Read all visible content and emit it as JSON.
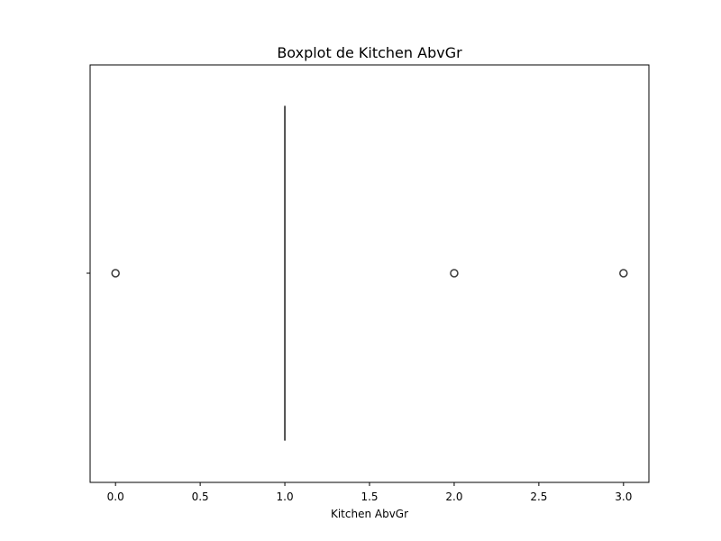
{
  "chart_data": {
    "type": "boxplot",
    "title": "Boxplot de Kitchen AbvGr",
    "xlabel": "Kitchen AbvGr",
    "ylabel": "",
    "xlim": [
      -0.15,
      3.15
    ],
    "xticks": [
      0.0,
      0.5,
      1.0,
      1.5,
      2.0,
      2.5,
      3.0
    ],
    "xtick_labels": [
      "0.0",
      "0.5",
      "1.0",
      "1.5",
      "2.0",
      "2.5",
      "3.0"
    ],
    "grid": false,
    "box": {
      "q1": 1.0,
      "median": 1.0,
      "q3": 1.0,
      "whisker_low": 1.0,
      "whisker_high": 1.0
    },
    "outliers": [
      0.0,
      2.0,
      3.0
    ],
    "colors": {
      "box": "#3a3a3a",
      "outlier_edge": "#3a3a3a",
      "axes": "#000000"
    }
  }
}
